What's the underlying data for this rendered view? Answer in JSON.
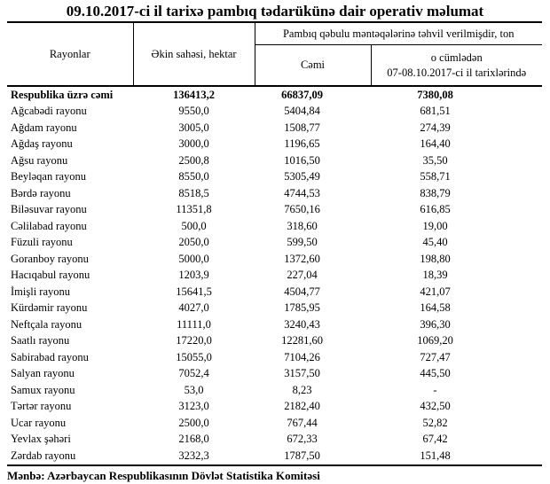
{
  "title": "09.10.2017-ci il tarixə pambıq tədarükünə dair operativ məlumat",
  "table": {
    "headers": {
      "rayonlar": "Rayonlar",
      "ekin_sahesi": "Əkin sahəsi, hektar",
      "group": "Pambıq qəbulu məntəqələrinə təhvil verilmişdir, ton",
      "cemi": "Cəmi",
      "o_cumleden_line1": "o cümlədən",
      "o_cumleden_line2": "07-08.10.2017-ci il tarixlərində"
    },
    "total_row": [
      "Respublika üzrə cəmi",
      "136413,2",
      "66837,09",
      "7380,08"
    ],
    "rows": [
      [
        "Ağcabədi rayonu",
        "9550,0",
        "5404,84",
        "681,51"
      ],
      [
        "Ağdam rayonu",
        "3005,0",
        "1508,77",
        "274,39"
      ],
      [
        "Ağdaş rayonu",
        "3000,0",
        "1196,65",
        "164,40"
      ],
      [
        "Ağsu rayonu",
        "2500,8",
        "1016,50",
        "35,50"
      ],
      [
        "Beyləqan rayonu",
        "8550,0",
        "5305,49",
        "558,71"
      ],
      [
        "Bərdə rayonu",
        "8518,5",
        "4744,53",
        "838,79"
      ],
      [
        "Biləsuvar rayonu",
        "11351,8",
        "7650,16",
        "616,85"
      ],
      [
        "Cəlilabad rayonu",
        "500,0",
        "318,60",
        "19,00"
      ],
      [
        "Füzuli rayonu",
        "2050,0",
        "599,50",
        "45,40"
      ],
      [
        "Goranboy rayonu",
        "5000,0",
        "1372,60",
        "198,80"
      ],
      [
        "Hacıqabul rayonu",
        "1203,9",
        "227,04",
        "18,39"
      ],
      [
        "İmişli rayonu",
        "15641,5",
        "4504,77",
        "421,07"
      ],
      [
        "Kürdəmir rayonu",
        "4027,0",
        "1785,95",
        "164,58"
      ],
      [
        "Neftçala rayonu",
        "11111,0",
        "3240,43",
        "396,30"
      ],
      [
        "Saatlı rayonu",
        "17220,0",
        "12281,60",
        "1069,20"
      ],
      [
        "Sabirabad rayonu",
        "15055,0",
        "7104,26",
        "727,47"
      ],
      [
        "Salyan rayonu",
        "7052,4",
        "3157,50",
        "445,50"
      ],
      [
        "Samux rayonu",
        "53,0",
        "8,23",
        "-"
      ],
      [
        "Tərtər rayonu",
        "3123,0",
        "2182,40",
        "432,50"
      ],
      [
        "Ucar rayonu",
        "2500,0",
        "767,44",
        "52,82"
      ],
      [
        "Yevlax şəhəri",
        "2168,0",
        "672,33",
        "67,42"
      ],
      [
        "Zərdab rayonu",
        "3232,3",
        "1787,50",
        "151,48"
      ]
    ]
  },
  "footer": "Mənbə: Azərbaycan Respublikasının Dövlət Statistika Komitəsi"
}
